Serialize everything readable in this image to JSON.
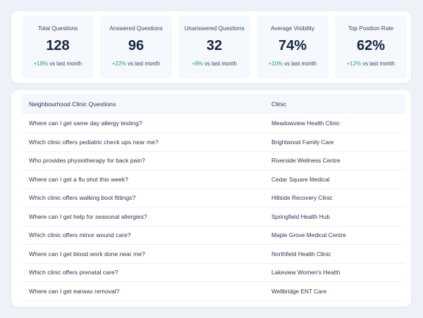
{
  "stats": [
    {
      "label": "Total Questions",
      "value": "128",
      "delta": "+18%",
      "suffix": "vs last month"
    },
    {
      "label": "Answered Questions",
      "value": "96",
      "delta": "+22%",
      "suffix": "vs last month"
    },
    {
      "label": "Unanswered Questions",
      "value": "32",
      "delta": "+8%",
      "suffix": "vs last month"
    },
    {
      "label": "Average Visibility",
      "value": "74%",
      "delta": "+10%",
      "suffix": "vs last month"
    },
    {
      "label": "Top Position Rate",
      "value": "62%",
      "delta": "+12%",
      "suffix": "vs last month"
    }
  ],
  "table": {
    "headers": {
      "question": "Neighbourhood Clinic Questions",
      "clinic": "Clinic"
    },
    "rows": [
      {
        "question": "Where can I get same day allergy testing?",
        "clinic": "Meadowview Health Clinic"
      },
      {
        "question": "Which clinic offers pediatric check ups near me?",
        "clinic": "Brightwood Family Care"
      },
      {
        "question": "Who provides physiotherapy for back pain?",
        "clinic": "Riverside Wellness Centre"
      },
      {
        "question": "Where can I get a flu shot this week?",
        "clinic": "Cedar Square Medical"
      },
      {
        "question": "Which clinic offers walking boot fittings?",
        "clinic": "Hillside Recovery Clinic"
      },
      {
        "question": "Where can I get help for seasonal allergies?",
        "clinic": "Springfield Health Hub"
      },
      {
        "question": "Which clinic offers minor wound care?",
        "clinic": "Maple Grove Medical Centre"
      },
      {
        "question": "Where can I get blood work done near me?",
        "clinic": "Northfield Health Clinic"
      },
      {
        "question": "Which clinic offers prenatal care?",
        "clinic": "Lakeview Women's Health"
      },
      {
        "question": "Where can I get earwax removal?",
        "clinic": "Wellbridge ENT Care"
      }
    ]
  }
}
